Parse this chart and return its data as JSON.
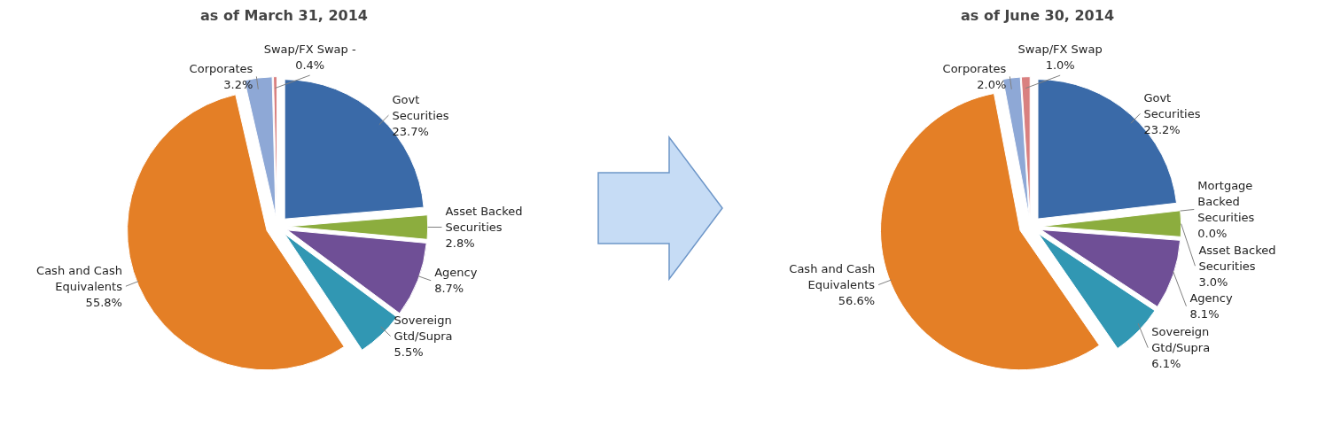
{
  "chart_data": [
    {
      "type": "pie",
      "title": "as of March 31, 2014",
      "categories": [
        "Govt Securities",
        "Asset Backed Securities",
        "Agency",
        "Sovereign Gtd/Supra",
        "Cash and Cash Equivalents",
        "Corporates",
        "Swap/FX Swap -"
      ],
      "values": [
        23.7,
        2.8,
        8.7,
        5.5,
        55.8,
        3.2,
        0.4
      ],
      "value_labels": [
        "23.7%",
        "2.8%",
        "8.7%",
        "5.5%",
        "55.8%",
        "3.2%",
        "0.4%"
      ],
      "colors": [
        "#3a6aa8",
        "#8cad3e",
        "#6f4f96",
        "#3197b3",
        "#e47f26",
        "#8ea8d6",
        "#d98080"
      ]
    },
    {
      "type": "pie",
      "title": "as of June 30, 2014",
      "categories": [
        "Govt Securities",
        "Mortgage Backed Securities",
        "Asset Backed Securities",
        "Agency",
        "Sovereign Gtd/Supra",
        "Cash and Cash Equivalents",
        "Corporates",
        "Swap/FX Swap"
      ],
      "values": [
        23.2,
        0.0,
        3.0,
        8.1,
        6.1,
        56.6,
        2.0,
        1.0
      ],
      "value_labels": [
        "23.2%",
        "0.0%",
        "3.0%",
        "8.1%",
        "6.1%",
        "56.6%",
        "2.0%",
        "1.0%"
      ],
      "colors": [
        "#3a6aa8",
        "#b04a48",
        "#8cad3e",
        "#6f4f96",
        "#3197b3",
        "#e47f26",
        "#8ea8d6",
        "#d98080"
      ]
    }
  ]
}
